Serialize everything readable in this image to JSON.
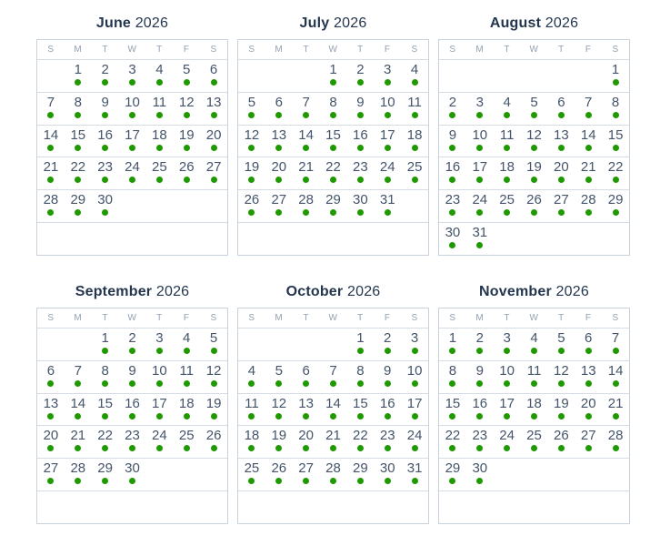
{
  "colors": {
    "dot_green": "#1e9a00",
    "title_text": "#24364e",
    "date_text": "#44546a",
    "weekday_text": "#92a0b1",
    "grid_line": "#d5dce3",
    "box_border": "#c8d2dc",
    "background": "#ffffff"
  },
  "day_headers": [
    "S",
    "M",
    "T",
    "W",
    "T",
    "F",
    "S"
  ],
  "dot_meaning": "availability-dot",
  "months": [
    {
      "name": "June",
      "year": "2026",
      "weeks": [
        [
          null,
          1,
          2,
          3,
          4,
          5,
          6
        ],
        [
          7,
          8,
          9,
          10,
          11,
          12,
          13
        ],
        [
          14,
          15,
          16,
          17,
          18,
          19,
          20
        ],
        [
          21,
          22,
          23,
          24,
          25,
          26,
          27
        ],
        [
          28,
          29,
          30,
          null,
          null,
          null,
          null
        ],
        [
          null,
          null,
          null,
          null,
          null,
          null,
          null
        ]
      ],
      "dot_dates": [
        1,
        2,
        3,
        4,
        5,
        6,
        7,
        8,
        9,
        10,
        11,
        12,
        13,
        14,
        15,
        16,
        17,
        18,
        19,
        20,
        21,
        22,
        23,
        24,
        25,
        26,
        27,
        28,
        29,
        30
      ]
    },
    {
      "name": "July",
      "year": "2026",
      "weeks": [
        [
          null,
          null,
          null,
          1,
          2,
          3,
          4
        ],
        [
          5,
          6,
          7,
          8,
          9,
          10,
          11
        ],
        [
          12,
          13,
          14,
          15,
          16,
          17,
          18
        ],
        [
          19,
          20,
          21,
          22,
          23,
          24,
          25
        ],
        [
          26,
          27,
          28,
          29,
          30,
          31,
          null
        ],
        [
          null,
          null,
          null,
          null,
          null,
          null,
          null
        ]
      ],
      "dot_dates": [
        1,
        2,
        3,
        4,
        5,
        6,
        7,
        8,
        9,
        10,
        11,
        12,
        13,
        14,
        15,
        16,
        17,
        18,
        19,
        20,
        21,
        22,
        23,
        24,
        25,
        26,
        27,
        28,
        29,
        30,
        31
      ]
    },
    {
      "name": "August",
      "year": "2026",
      "weeks": [
        [
          null,
          null,
          null,
          null,
          null,
          null,
          1
        ],
        [
          2,
          3,
          4,
          5,
          6,
          7,
          8
        ],
        [
          9,
          10,
          11,
          12,
          13,
          14,
          15
        ],
        [
          16,
          17,
          18,
          19,
          20,
          21,
          22
        ],
        [
          23,
          24,
          25,
          26,
          27,
          28,
          29
        ],
        [
          30,
          31,
          null,
          null,
          null,
          null,
          null
        ]
      ],
      "dot_dates": [
        1,
        2,
        3,
        4,
        5,
        6,
        7,
        8,
        9,
        10,
        11,
        12,
        13,
        14,
        15,
        16,
        17,
        18,
        19,
        20,
        21,
        22,
        23,
        24,
        25,
        26,
        27,
        28,
        29,
        30,
        31
      ]
    },
    {
      "name": "September",
      "year": "2026",
      "weeks": [
        [
          null,
          null,
          1,
          2,
          3,
          4,
          5
        ],
        [
          6,
          7,
          8,
          9,
          10,
          11,
          12
        ],
        [
          13,
          14,
          15,
          16,
          17,
          18,
          19
        ],
        [
          20,
          21,
          22,
          23,
          24,
          25,
          26
        ],
        [
          27,
          28,
          29,
          30,
          null,
          null,
          null
        ],
        [
          null,
          null,
          null,
          null,
          null,
          null,
          null
        ]
      ],
      "dot_dates": [
        1,
        2,
        3,
        4,
        5,
        6,
        7,
        8,
        9,
        10,
        11,
        12,
        13,
        14,
        15,
        16,
        17,
        18,
        19,
        20,
        21,
        22,
        23,
        24,
        25,
        26,
        27,
        28,
        29,
        30
      ]
    },
    {
      "name": "October",
      "year": "2026",
      "weeks": [
        [
          null,
          null,
          null,
          null,
          1,
          2,
          3
        ],
        [
          4,
          5,
          6,
          7,
          8,
          9,
          10
        ],
        [
          11,
          12,
          13,
          14,
          15,
          16,
          17
        ],
        [
          18,
          19,
          20,
          21,
          22,
          23,
          24
        ],
        [
          25,
          26,
          27,
          28,
          29,
          30,
          31
        ],
        [
          null,
          null,
          null,
          null,
          null,
          null,
          null
        ]
      ],
      "dot_dates": [
        1,
        2,
        3,
        4,
        5,
        6,
        7,
        8,
        9,
        10,
        11,
        12,
        13,
        14,
        15,
        16,
        17,
        18,
        19,
        20,
        21,
        22,
        23,
        24,
        25,
        26,
        27,
        28,
        29,
        30,
        31
      ]
    },
    {
      "name": "November",
      "year": "2026",
      "weeks": [
        [
          1,
          2,
          3,
          4,
          5,
          6,
          7
        ],
        [
          8,
          9,
          10,
          11,
          12,
          13,
          14
        ],
        [
          15,
          16,
          17,
          18,
          19,
          20,
          21
        ],
        [
          22,
          23,
          24,
          25,
          26,
          27,
          28
        ],
        [
          29,
          30,
          null,
          null,
          null,
          null,
          null
        ],
        [
          null,
          null,
          null,
          null,
          null,
          null,
          null
        ]
      ],
      "dot_dates": [
        1,
        2,
        3,
        4,
        5,
        6,
        7,
        8,
        9,
        10,
        11,
        12,
        13,
        14,
        15,
        16,
        17,
        18,
        19,
        20,
        21,
        22,
        23,
        24,
        25,
        26,
        27,
        28,
        29,
        30
      ]
    }
  ]
}
